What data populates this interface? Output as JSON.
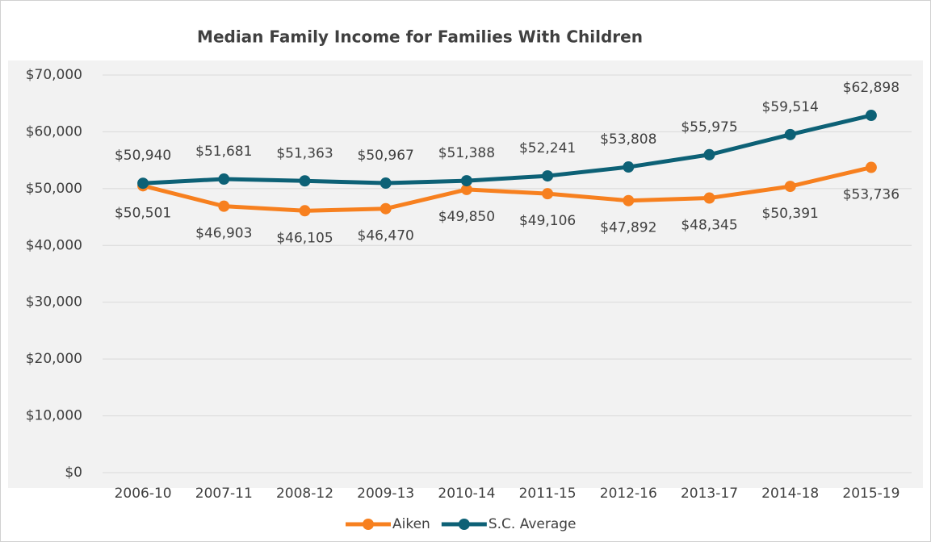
{
  "chart_data": {
    "type": "line",
    "title": "Median Family Income for Families With Children",
    "categories": [
      "2006-10",
      "2007-11",
      "2008-12",
      "2009-13",
      "2010-14",
      "2011-15",
      "2012-16",
      "2013-17",
      "2014-18",
      "2015-19"
    ],
    "series": [
      {
        "name": "Aiken",
        "color": "#f7801f",
        "values": [
          50501,
          46903,
          46105,
          46470,
          49850,
          49106,
          47892,
          48345,
          50391,
          53736
        ],
        "value_labels": [
          "$50,501",
          "$46,903",
          "$46,105",
          "$46,470",
          "$49,850",
          "$49,106",
          "$47,892",
          "$48,345",
          "$50,391",
          "$53,736"
        ]
      },
      {
        "name": "S.C. Average",
        "color": "#0d6176",
        "values": [
          50940,
          51681,
          51363,
          50967,
          51388,
          52241,
          53808,
          55975,
          59514,
          62898
        ],
        "value_labels": [
          "$50,940",
          "$51,681",
          "$51,363",
          "$50,967",
          "$51,388",
          "$52,241",
          "$53,808",
          "$55,975",
          "$59,514",
          "$62,898"
        ]
      }
    ],
    "ylim": [
      0,
      70000
    ],
    "yticks": [
      {
        "value": 0,
        "label": "$0"
      },
      {
        "value": 10000,
        "label": "$10,000"
      },
      {
        "value": 20000,
        "label": "$20,000"
      },
      {
        "value": 30000,
        "label": "$30,000"
      },
      {
        "value": 40000,
        "label": "$40,000"
      },
      {
        "value": 50000,
        "label": "$50,000"
      },
      {
        "value": 60000,
        "label": "$60,000"
      },
      {
        "value": 70000,
        "label": "$70,000"
      }
    ],
    "grid": true,
    "legend": "bottom"
  }
}
